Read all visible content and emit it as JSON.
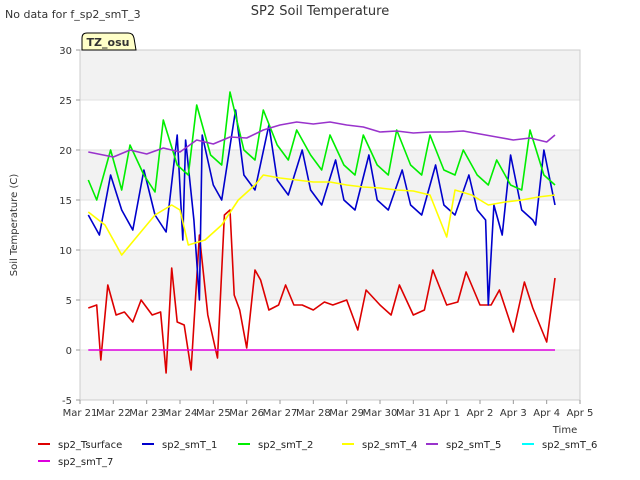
{
  "page": {
    "nodata_note": "No data for f_sp2_smT_3",
    "badge": "TZ_osu"
  },
  "chart_data": {
    "type": "line",
    "title": "SP2 Soil Temperature",
    "xlabel": "Time",
    "ylabel": "Soil Temperature (C)",
    "ylim": [
      -5,
      30
    ],
    "yticks": [
      -5,
      0,
      5,
      10,
      15,
      20,
      25,
      30
    ],
    "xlim": [
      "2023-03-21",
      "2023-04-05"
    ],
    "xticks": [
      "Mar 21",
      "Mar 22",
      "Mar 23",
      "Mar 24",
      "Mar 25",
      "Mar 26",
      "Mar 27",
      "Mar 28",
      "Mar 29",
      "Mar 30",
      "Mar 31",
      "Apr 1",
      "Apr 2",
      "Apr 3",
      "Apr 4",
      "Apr 5"
    ],
    "grid": "horizontal bands",
    "legend": "bottom",
    "series": [
      {
        "name": "sp2_Tsurface",
        "color": "#dd0000",
        "x": [
          "2023-03-21T06:00",
          "2023-03-21T12:00",
          "2023-03-21T15:00",
          "2023-03-21T20:00",
          "2023-03-22T02:00",
          "2023-03-22T08:00",
          "2023-03-22T14:00",
          "2023-03-22T20:00",
          "2023-03-23T04:00",
          "2023-03-23T10:00",
          "2023-03-23T14:00",
          "2023-03-23T18:00",
          "2023-03-23T22:00",
          "2023-03-24T03:00",
          "2023-03-24T08:00",
          "2023-03-24T14:00",
          "2023-03-24T20:00",
          "2023-03-25T03:00",
          "2023-03-25T08:00",
          "2023-03-25T12:00",
          "2023-03-25T15:00",
          "2023-03-25T19:00",
          "2023-03-26T00:00",
          "2023-03-26T06:00",
          "2023-03-26T10:00",
          "2023-03-26T16:00",
          "2023-03-26T23:00",
          "2023-03-27T04:00",
          "2023-03-27T10:00",
          "2023-03-27T16:00",
          "2023-03-28T00:00",
          "2023-03-28T08:00",
          "2023-03-28T14:00",
          "2023-03-29T00:00",
          "2023-03-29T08:00",
          "2023-03-29T14:00",
          "2023-03-30T00:00",
          "2023-03-30T08:00",
          "2023-03-30T14:00",
          "2023-03-31T00:00",
          "2023-03-31T08:00",
          "2023-03-31T14:00",
          "2023-04-01T00:00",
          "2023-04-01T08:00",
          "2023-04-01T14:00",
          "2023-04-02T00:00",
          "2023-04-02T08:00",
          "2023-04-02T14:00",
          "2023-04-03T00:00",
          "2023-04-03T08:00",
          "2023-04-03T14:00",
          "2023-04-04T00:00",
          "2023-04-04T06:00"
        ],
        "values": [
          4.2,
          4.5,
          -1.0,
          6.5,
          3.5,
          3.8,
          2.8,
          5.0,
          3.5,
          3.8,
          -2.3,
          8.2,
          2.8,
          2.5,
          -2.0,
          11.5,
          3.5,
          -0.8,
          13.5,
          14.0,
          5.5,
          4.0,
          0.2,
          8.0,
          7.0,
          4.0,
          4.5,
          6.5,
          4.5,
          4.5,
          4.0,
          4.8,
          4.5,
          5.0,
          2.0,
          6.0,
          4.5,
          3.5,
          6.5,
          3.5,
          4.0,
          8.0,
          4.5,
          4.8,
          7.8,
          4.5,
          4.5,
          6.0,
          1.8,
          6.8,
          4.2,
          0.8,
          7.2
        ]
      },
      {
        "name": "sp2_smT_1",
        "color": "#0000cc",
        "x": [
          "2023-03-21T06:00",
          "2023-03-21T14:00",
          "2023-03-21T22:00",
          "2023-03-22T06:00",
          "2023-03-22T14:00",
          "2023-03-22T22:00",
          "2023-03-23T06:00",
          "2023-03-23T14:00",
          "2023-03-23T22:00",
          "2023-03-24T02:00",
          "2023-03-24T04:00",
          "2023-03-24T10:00",
          "2023-03-24T14:00",
          "2023-03-24T16:00",
          "2023-03-25T00:00",
          "2023-03-25T06:00",
          "2023-03-25T16:00",
          "2023-03-25T22:00",
          "2023-03-26T06:00",
          "2023-03-26T16:00",
          "2023-03-26T22:00",
          "2023-03-27T06:00",
          "2023-03-27T16:00",
          "2023-03-27T22:00",
          "2023-03-28T06:00",
          "2023-03-28T16:00",
          "2023-03-28T22:00",
          "2023-03-29T06:00",
          "2023-03-29T16:00",
          "2023-03-29T22:00",
          "2023-03-30T06:00",
          "2023-03-30T16:00",
          "2023-03-30T22:00",
          "2023-03-31T06:00",
          "2023-03-31T16:00",
          "2023-03-31T22:00",
          "2023-04-01T06:00",
          "2023-04-01T16:00",
          "2023-04-01T22:00",
          "2023-04-02T04:00",
          "2023-04-02T06:00",
          "2023-04-02T10:00",
          "2023-04-02T16:00",
          "2023-04-02T22:00",
          "2023-04-03T06:00",
          "2023-04-03T14:00",
          "2023-04-03T16:00",
          "2023-04-03T22:00",
          "2023-04-04T06:00"
        ],
        "values": [
          13.5,
          11.5,
          17.5,
          14.0,
          12.0,
          18.0,
          13.5,
          11.8,
          21.5,
          11.0,
          21.0,
          13.0,
          5.0,
          21.5,
          16.5,
          15.0,
          24.0,
          17.5,
          16.0,
          22.5,
          17.0,
          15.5,
          20.0,
          16.0,
          14.5,
          19.0,
          15.0,
          14.0,
          19.5,
          15.0,
          14.0,
          18.0,
          14.5,
          13.5,
          18.5,
          14.5,
          13.5,
          17.5,
          14.0,
          13.0,
          4.5,
          14.5,
          11.5,
          19.5,
          14.0,
          13.0,
          12.5,
          20.0,
          14.5
        ]
      },
      {
        "name": "sp2_smT_2",
        "color": "#00ee00",
        "x": [
          "2023-03-21T06:00",
          "2023-03-21T12:00",
          "2023-03-21T22:00",
          "2023-03-22T06:00",
          "2023-03-22T12:00",
          "2023-03-22T22:00",
          "2023-03-23T06:00",
          "2023-03-23T12:00",
          "2023-03-23T22:00",
          "2023-03-24T06:00",
          "2023-03-24T12:00",
          "2023-03-24T22:00",
          "2023-03-25T06:00",
          "2023-03-25T12:00",
          "2023-03-25T22:00",
          "2023-03-26T06:00",
          "2023-03-26T12:00",
          "2023-03-26T22:00",
          "2023-03-27T06:00",
          "2023-03-27T12:00",
          "2023-03-27T22:00",
          "2023-03-28T06:00",
          "2023-03-28T12:00",
          "2023-03-28T22:00",
          "2023-03-29T06:00",
          "2023-03-29T12:00",
          "2023-03-29T22:00",
          "2023-03-30T06:00",
          "2023-03-30T12:00",
          "2023-03-30T22:00",
          "2023-03-31T06:00",
          "2023-03-31T12:00",
          "2023-03-31T22:00",
          "2023-04-01T06:00",
          "2023-04-01T12:00",
          "2023-04-01T22:00",
          "2023-04-02T06:00",
          "2023-04-02T12:00",
          "2023-04-02T22:00",
          "2023-04-03T06:00",
          "2023-04-03T12:00",
          "2023-04-03T22:00",
          "2023-04-04T06:00"
        ],
        "values": [
          17.0,
          15.0,
          20.0,
          16.0,
          20.5,
          17.5,
          15.8,
          23.0,
          18.5,
          17.5,
          24.5,
          19.5,
          18.5,
          25.8,
          20.0,
          19.0,
          24.0,
          20.5,
          19.0,
          22.0,
          19.5,
          18.0,
          21.5,
          18.5,
          17.5,
          21.5,
          18.5,
          17.5,
          22.0,
          18.5,
          17.5,
          21.5,
          18.0,
          17.5,
          20.0,
          17.5,
          16.5,
          19.0,
          16.5,
          16.0,
          22.0,
          17.5,
          16.5
        ]
      },
      {
        "name": "sp2_smT_4",
        "color": "#ffff00",
        "x": [
          "2023-03-21T06:00",
          "2023-03-21T18:00",
          "2023-03-22T06:00",
          "2023-03-22T18:00",
          "2023-03-23T06:00",
          "2023-03-23T12:00",
          "2023-03-23T18:00",
          "2023-03-24T00:00",
          "2023-03-24T06:00",
          "2023-03-24T18:00",
          "2023-03-25T06:00",
          "2023-03-25T18:00",
          "2023-03-26T06:00",
          "2023-03-26T12:00",
          "2023-03-27T00:00",
          "2023-03-27T12:00",
          "2023-03-28T00:00",
          "2023-03-28T12:00",
          "2023-03-29T00:00",
          "2023-03-29T12:00",
          "2023-03-30T00:00",
          "2023-03-30T12:00",
          "2023-03-31T00:00",
          "2023-03-31T12:00",
          "2023-04-01T00:00",
          "2023-04-01T06:00",
          "2023-04-01T18:00",
          "2023-04-02T06:00",
          "2023-04-02T18:00",
          "2023-04-03T06:00",
          "2023-04-03T18:00",
          "2023-04-04T06:00"
        ],
        "values": [
          13.8,
          12.5,
          9.5,
          11.5,
          13.5,
          14.0,
          14.5,
          14.0,
          10.5,
          11.0,
          12.5,
          15.0,
          16.5,
          17.5,
          17.2,
          17.0,
          16.8,
          16.8,
          16.5,
          16.3,
          16.2,
          16.0,
          15.9,
          15.5,
          11.3,
          16.0,
          15.5,
          14.5,
          14.8,
          15.0,
          15.3,
          15.5
        ]
      },
      {
        "name": "sp2_smT_5",
        "color": "#9933cc",
        "x": [
          "2023-03-21T06:00",
          "2023-03-22T00:00",
          "2023-03-22T12:00",
          "2023-03-23T00:00",
          "2023-03-23T12:00",
          "2023-03-24T00:00",
          "2023-03-24T12:00",
          "2023-03-25T00:00",
          "2023-03-25T12:00",
          "2023-03-26T00:00",
          "2023-03-26T12:00",
          "2023-03-27T00:00",
          "2023-03-27T12:00",
          "2023-03-28T00:00",
          "2023-03-28T12:00",
          "2023-03-29T00:00",
          "2023-03-29T12:00",
          "2023-03-30T00:00",
          "2023-03-30T12:00",
          "2023-03-31T00:00",
          "2023-03-31T12:00",
          "2023-04-01T00:00",
          "2023-04-01T12:00",
          "2023-04-02T00:00",
          "2023-04-02T12:00",
          "2023-04-03T00:00",
          "2023-04-03T12:00",
          "2023-04-04T00:00",
          "2023-04-04T06:00"
        ],
        "values": [
          19.8,
          19.3,
          20.0,
          19.6,
          20.2,
          19.8,
          21.0,
          20.6,
          21.3,
          21.2,
          22.0,
          22.5,
          22.8,
          22.6,
          22.8,
          22.5,
          22.3,
          21.8,
          21.9,
          21.7,
          21.8,
          21.8,
          21.9,
          21.6,
          21.3,
          21.0,
          21.2,
          20.8,
          21.5
        ]
      },
      {
        "name": "sp2_smT_6",
        "color": "#00ffff",
        "x": [],
        "values": []
      },
      {
        "name": "sp2_smT_7",
        "color": "#dd00dd",
        "x": [
          "2023-03-21T06:00",
          "2023-04-04T06:00"
        ],
        "values": [
          0.0,
          0.0
        ]
      }
    ]
  }
}
